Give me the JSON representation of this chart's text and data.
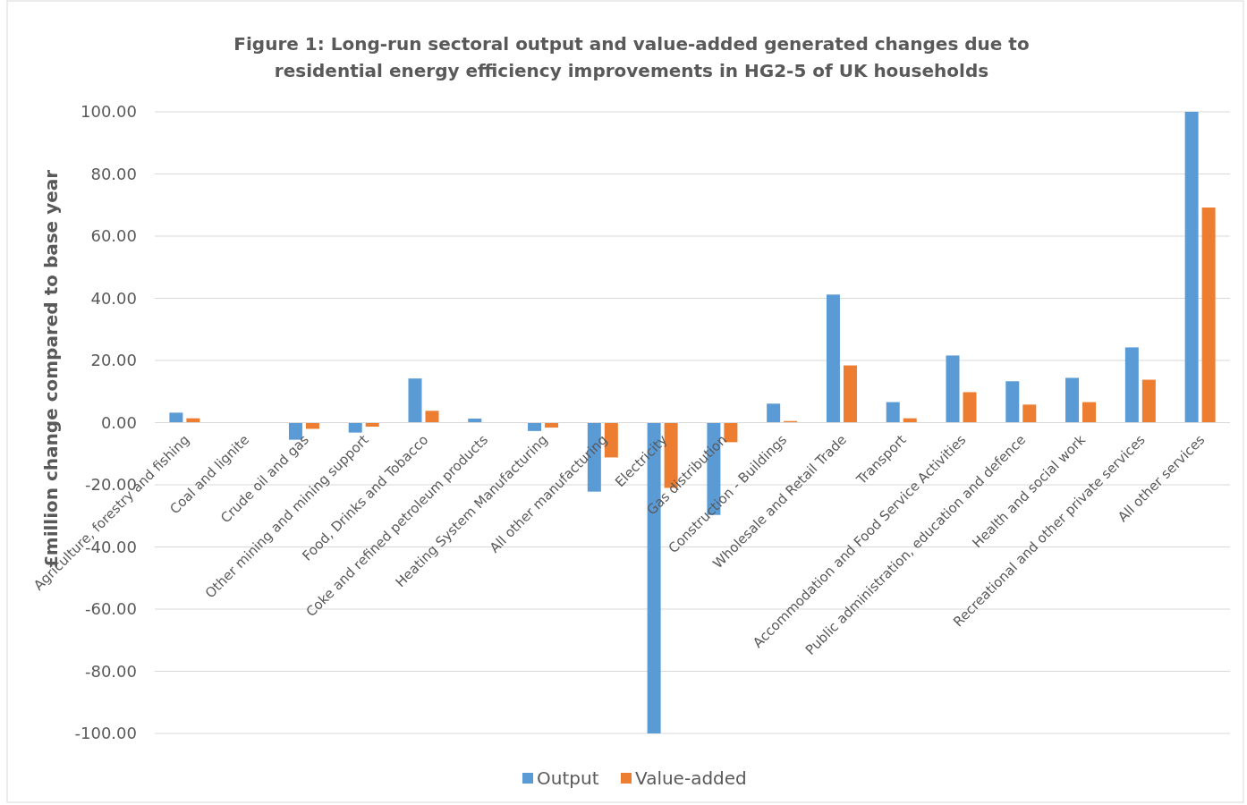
{
  "chart_data": {
    "type": "bar",
    "title": "Figure 1: Long-run sectoral output and value-added generated changes due to residential energy efficiency improvements in HG2-5 of UK households",
    "ylabel": "£million change compared to base year",
    "categories": [
      "Agriculture, forestry and fishing",
      "Coal and lignite",
      "Crude oil and gas",
      "Other mining and mining support",
      "Food, Drinks and Tobacco",
      "Coke and refined petroleum products",
      "Heating System Manufacturing",
      "All other manufacturing",
      "Electricity",
      "Gas distribution",
      "Construction - Buildings",
      "Wholesale and Retail Trade",
      "Transport",
      "Accommodation and Food Service Activities",
      "Public administration, education and defence",
      "Health and social work",
      "Recreational and other private services",
      "All other services"
    ],
    "series": [
      {
        "name": "Output",
        "color": "#5b9bd5",
        "values": [
          3.2,
          0,
          -5.5,
          -3.2,
          14.2,
          1.3,
          -2.7,
          -22.2,
          -100,
          -29.7,
          6.1,
          41.2,
          6.6,
          21.6,
          13.3,
          14.4,
          24.2,
          100
        ]
      },
      {
        "name": "Value-added",
        "color": "#ed7d31",
        "values": [
          1.4,
          0,
          -2.0,
          -1.3,
          3.8,
          0,
          -1.6,
          -11.2,
          -21,
          -6.3,
          0.5,
          18.4,
          1.4,
          9.8,
          5.8,
          6.6,
          13.8,
          69.2
        ]
      }
    ],
    "ylim": [
      -100,
      100
    ],
    "yticks": [
      {
        "value": -100,
        "label": "-100.00"
      },
      {
        "value": -80,
        "label": "-80.00"
      },
      {
        "value": -60,
        "label": "-60.00"
      },
      {
        "value": -40,
        "label": "-40.00"
      },
      {
        "value": -20,
        "label": "-20.00"
      },
      {
        "value": 0,
        "label": "0.00"
      },
      {
        "value": 20,
        "label": "20.00"
      },
      {
        "value": 40,
        "label": "40.00"
      },
      {
        "value": 60,
        "label": "60.00"
      },
      {
        "value": 80,
        "label": "80.00"
      },
      {
        "value": 100,
        "label": "100.00"
      }
    ],
    "grid": "y",
    "legend": "bottom"
  }
}
